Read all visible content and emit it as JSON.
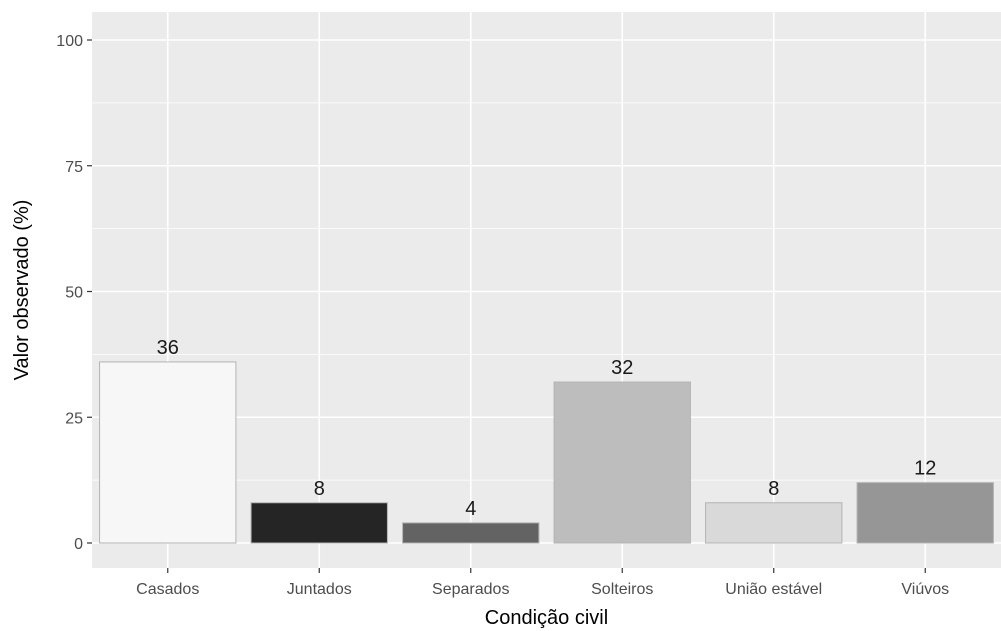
{
  "chart_data": {
    "type": "bar",
    "title": "",
    "xlabel": "Condição civil",
    "ylabel": "Valor observado (%)",
    "categories": [
      "Casados",
      "Juntados",
      "Separados",
      "Solteiros",
      "União estável",
      "Viúvos"
    ],
    "values": [
      36,
      8,
      4,
      32,
      8,
      12
    ],
    "data_labels": [
      "36",
      "8",
      "4",
      "32",
      "8",
      "12"
    ],
    "bar_colors": [
      "#f7f7f7",
      "#252525",
      "#636363",
      "#bdbdbd",
      "#d9d9d9",
      "#969696"
    ],
    "ylim": [
      0,
      100
    ],
    "yticks": [
      0,
      25,
      50,
      75,
      100
    ],
    "ytick_labels": [
      "0",
      "25",
      "50",
      "75",
      "100"
    ],
    "grid": true,
    "legend": "none",
    "panel_background": "#ebebeb",
    "grid_color": "#ffffff"
  }
}
